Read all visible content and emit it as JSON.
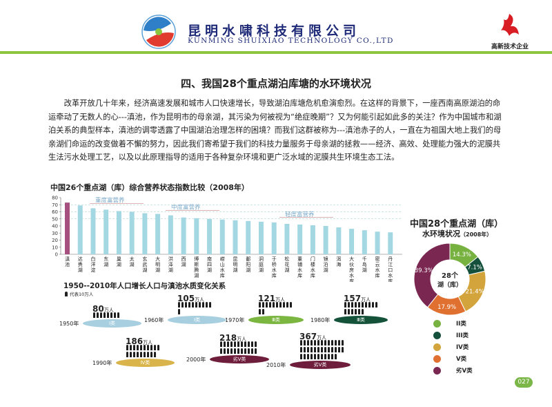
{
  "header": {
    "company_cn": "昆明水啸科技有限公司",
    "company_en": "KUNMING SHUIXIAO TECHNOLOGY CO.,LTD",
    "badge": "高新技术企业"
  },
  "section_title": "四、我国28个重点湖泊库塘的水环境状况",
  "intro": "改革开放几十年来，经济高速发展和城市人口快速增长，导致湖泊库塘危机愈演愈烈。在这样的背景下，一座西南高原湖泊的命运牵动了无数人的心---滇池，作为昆明市的母亲湖，其污染为何被视为“绝症晚期”？又为何能引起如此多的关注？作为中国城市和湖泊关系的典型样本，滇池的调零透露了中国湖泊治理怎样的困境？而我们这群被称为---滇池赤子的人，一直在为祖国大地上我们的母亲湖们命运的改变做着不懈的努力，因此我们寄希望于我们的科技力量服务于母亲湖的拯救——经济、高效、处理能力强大的泥膜共生法污水处理工艺，以及以此原理指导的适用于各种复杂环境和更广泛水域的泥膜共生环境生态工法。",
  "bar_chart": {
    "title": "中国26个重点湖（库）综合营养状态指数比较（2008年）",
    "zones": [
      "重度富营养",
      "中度富营养",
      "轻度富营养"
    ],
    "colors": {
      "highlight": "#a6507f",
      "bar": "#a3d8e3"
    }
  },
  "population": {
    "title": "1950--2010年人口增长人口与滇池水质变化关系",
    "legend": "代表10万人",
    "unit": "万人",
    "items": [
      {
        "year": "1950年",
        "value": "80",
        "class": "Ⅰ类",
        "color": "#a7cfe0"
      },
      {
        "year": "1960年",
        "value": "105",
        "class": "Ⅰ类",
        "color": "#a7cfe0"
      },
      {
        "year": "1970年",
        "value": "121",
        "class": "Ⅲ类",
        "color": "#7ab640"
      },
      {
        "year": "1980年",
        "value": "157",
        "class": "Ⅲ类",
        "color": "#15523a"
      },
      {
        "year": "1990年",
        "value": "186",
        "class": "Ⅳ类",
        "color": "#d9b44a"
      },
      {
        "year": "2000年",
        "value": "218",
        "class": "劣Ⅴ类",
        "color": "#6e1e3a"
      },
      {
        "year": "2010年",
        "value": "367",
        "class": "劣Ⅴ类",
        "color": "#6e1e3a"
      }
    ]
  },
  "pie": {
    "title_line1": "中国28个重点湖（库）",
    "title_line2": "水环境状况",
    "year": "（2008年）",
    "center_line1": "28个",
    "center_line2": "湖（库）"
  },
  "page_number": "027",
  "chart_data": [
    {
      "type": "bar",
      "title": "中国26个重点湖（库）综合营养状态指数比较（2008年）",
      "categories": [
        "滇池",
        "达赉湖",
        "白洋淀",
        "东湖",
        "巢湖",
        "太湖",
        "玄武湖",
        "大明湖",
        "洪泽湖",
        "西湖",
        "博斯腾湖",
        "南四湖",
        "崂山水库",
        "昆明湖",
        "鄱阳湖",
        "洞庭湖",
        "于桥水库",
        "松花湖",
        "董铺水库",
        "门楼水库",
        "镜泊湖",
        "洱海",
        "大伙房水库",
        "千岛湖",
        "密云水库",
        "丹江口水库"
      ],
      "values": [
        73,
        69,
        65,
        63,
        61,
        60,
        58,
        57,
        55,
        52,
        51,
        50,
        49,
        48,
        47,
        46,
        45,
        43,
        42,
        41,
        40,
        38,
        36,
        34,
        32,
        31
      ],
      "ylim": [
        0,
        80
      ],
      "yticks": [
        0,
        10,
        20,
        30,
        40,
        50,
        60,
        70,
        80
      ],
      "thresholds": [
        70,
        60,
        50
      ]
    },
    {
      "type": "pie",
      "labels": [
        "II类",
        "III类",
        "IV类",
        "V类",
        "劣V类"
      ],
      "values": [
        14.3,
        7.1,
        21.4,
        17.9,
        39.3
      ],
      "display": [
        "14.3%",
        "7.1%",
        "21.4%",
        "17.9%",
        "39.3%"
      ],
      "colors": [
        "#77b140",
        "#14503b",
        "#d3a43c",
        "#e07030",
        "#7a2752"
      ]
    }
  ]
}
